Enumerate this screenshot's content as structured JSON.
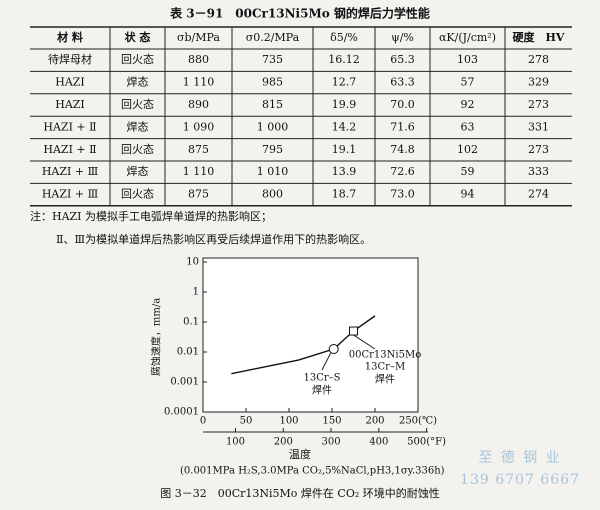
{
  "table": {
    "title": "表 3－91　00Cr13Ni5Mo 钢的焊后力学性能",
    "header": [
      "材 料",
      "状 态",
      "σb/MPa",
      "σ0.2/MPa",
      "δ5/%",
      "ψ/%",
      "αK/(J/cm²)",
      "硬度　HV"
    ],
    "rows": [
      [
        "待焊母材",
        "回火态",
        "880",
        "735",
        "16.12",
        "65.3",
        "103",
        "278"
      ],
      [
        "HAZI",
        "焊态",
        "1 110",
        "985",
        "12.7",
        "63.3",
        "57",
        "329"
      ],
      [
        "HAZI",
        "回火态",
        "890",
        "815",
        "19.9",
        "70.0",
        "92",
        "273"
      ],
      [
        "HAZI + Ⅱ",
        "焊态",
        "1 090",
        "1 000",
        "14.2",
        "71.6",
        "63",
        "331"
      ],
      [
        "HAZI + Ⅱ",
        "回火态",
        "875",
        "795",
        "19.1",
        "74.8",
        "102",
        "273"
      ],
      [
        "HAZI + Ⅲ",
        "焊态",
        "1 110",
        "1 010",
        "13.9",
        "72.6",
        "59",
        "333"
      ],
      [
        "HAZI + Ⅲ",
        "回火态",
        "875",
        "800",
        "18.7",
        "73.0",
        "94",
        "274"
      ]
    ],
    "notes": [
      "注：HAZI 为模拟手工电弧焊单道焊的热影响区；",
      "Ⅱ、Ⅲ为模拟单道焊后热影响区再受后续焊道作用下的热影响区。"
    ]
  },
  "figure": {
    "type": "line",
    "y_label": "腐蚀速度，mm/a",
    "x_label": "温度",
    "conditions": "(0.001MPa H₂S,3.0MPa CO₂,5%NaCl,pH3,1σy.336h)",
    "caption": "图 3－32　00Cr13Ni5Mo 焊件在 CO₂ 环境中的耐蚀性",
    "log_y": true,
    "color": "#111111",
    "x": [
      33,
      111,
      152,
      175,
      200
    ],
    "values": [
      0.0019,
      0.0054,
      0.0126,
      0.05,
      0.16
    ],
    "xlim": [
      0,
      250
    ],
    "xticks": [
      0,
      50,
      100,
      150,
      200,
      {
        "value": 250,
        "label": "250(℃)"
      }
    ],
    "x2lim": [
      32,
      482
    ],
    "x2ticks": [
      100,
      200,
      300,
      400,
      {
        "value": 500,
        "label": "500(°F)"
      }
    ],
    "ylim": [
      0.0001,
      10
    ],
    "yticks": [
      0.0001,
      0.001,
      0.01,
      0.1,
      1,
      10
    ],
    "annotations": [
      "13Cr–S",
      "焊件",
      "00Cr13Ni5Mo",
      "13Cr–M",
      "焊件"
    ]
  },
  "watermark": [
    "至 德 钢 业",
    "139 6707 6667"
  ]
}
